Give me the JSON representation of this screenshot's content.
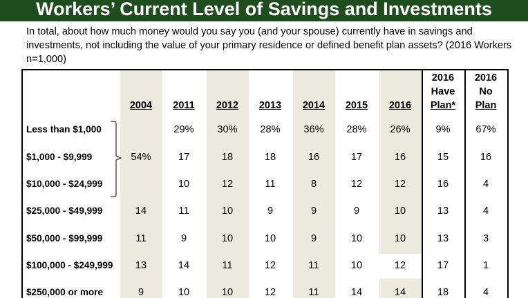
{
  "title": "Workers’ Current Level of Savings and Investments",
  "question": "In total, about how much money would you say you (and your spouse) currently have in savings and investments, not including the value of your primary residence or defined benefit plan assets? (2016 Workers n=1,000)",
  "chart_data": {
    "type": "table",
    "columns": [
      {
        "key": "2004",
        "lines": [
          "2004"
        ]
      },
      {
        "key": "2011",
        "lines": [
          "2011"
        ]
      },
      {
        "key": "2012",
        "lines": [
          "2012"
        ]
      },
      {
        "key": "2013",
        "lines": [
          "2013"
        ]
      },
      {
        "key": "2014",
        "lines": [
          "2014"
        ]
      },
      {
        "key": "2015",
        "lines": [
          "2015"
        ]
      },
      {
        "key": "2016",
        "lines": [
          "2016"
        ]
      },
      {
        "key": "2016 Have Plan*",
        "lines": [
          "2016",
          "Have",
          "Plan*"
        ]
      },
      {
        "key": "2016 No Plan",
        "lines": [
          "2016",
          "No",
          "Plan"
        ]
      }
    ],
    "rows": [
      {
        "label": "Less than $1,000",
        "values": [
          "",
          "29%",
          "30%",
          "28%",
          "36%",
          "28%",
          "26%",
          "9%",
          "67%"
        ]
      },
      {
        "label": "$1,000 - $9,999",
        "values": [
          "",
          "17",
          "18",
          "18",
          "16",
          "17",
          "16",
          "15",
          "16"
        ]
      },
      {
        "label": "$10,000 - $24,999",
        "values": [
          "",
          "10",
          "12",
          "11",
          "8",
          "12",
          "12",
          "16",
          "4"
        ]
      },
      {
        "label": "$25,000 - $49,999",
        "values": [
          "14",
          "11",
          "10",
          "9",
          "9",
          "9",
          "10",
          "13",
          "4"
        ]
      },
      {
        "label": "$50,000 - $99,999",
        "values": [
          "11",
          "9",
          "10",
          "10",
          "9",
          "10",
          "10",
          "13",
          "3"
        ]
      },
      {
        "label": "$100,000 - $249,999",
        "values": [
          "13",
          "14",
          "11",
          "12",
          "11",
          "10",
          "12",
          "17",
          "1"
        ]
      },
      {
        "label": "$250,000 or more",
        "values": [
          "9",
          "10",
          "10",
          "12",
          "11",
          "14",
          "14",
          "18",
          "4"
        ]
      }
    ],
    "grouped_2004": {
      "rows": [
        "Less than $1,000",
        "$1,000 - $9,999",
        "$10,000 - $24,999"
      ],
      "value": "54%"
    }
  }
}
